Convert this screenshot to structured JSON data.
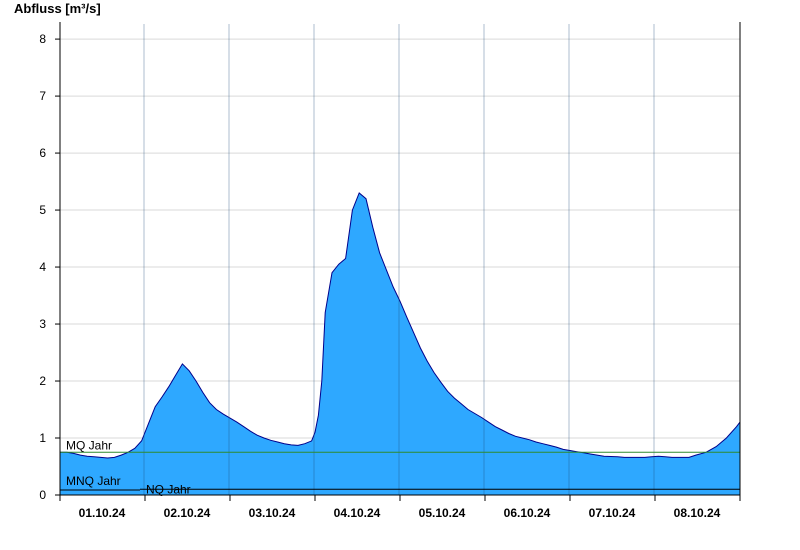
{
  "chart_data": {
    "type": "area",
    "ylabel": "Abfluss [m³/s]",
    "xlabel": "",
    "title": "",
    "ylim": [
      0,
      8.3
    ],
    "yticks": [
      "0",
      "1",
      "2",
      "3",
      "4",
      "5",
      "6",
      "7",
      "8"
    ],
    "x_categories": [
      "01.10.24",
      "02.10.24",
      "03.10.24",
      "04.10.24",
      "05.10.24",
      "06.10.24",
      "07.10.24",
      "08.10.24"
    ],
    "grid": true,
    "colors": {
      "area": "#2ea8ff",
      "outline": "#00008b",
      "mq": "#2e8b2e",
      "nq": "#000000",
      "grid": "#d9d9d9"
    },
    "series": [
      {
        "x_days": [
          0,
          0.1,
          0.2,
          0.3,
          0.4,
          0.5,
          0.6,
          0.7,
          0.8,
          0.9,
          1.0,
          1.1,
          1.2,
          1.3,
          1.4,
          1.5,
          1.6,
          1.7,
          1.8,
          1.9,
          2.0,
          2.1,
          2.2,
          2.3,
          2.4,
          2.5,
          2.6,
          2.7,
          2.8,
          2.9,
          3.0,
          3.1,
          3.2,
          3.3,
          3.4,
          3.5,
          3.6,
          3.7,
          3.75,
          3.8,
          3.85,
          3.9,
          4.0,
          4.1,
          4.2,
          4.3,
          4.4,
          4.5,
          4.6,
          4.7,
          4.8,
          4.9,
          5.0,
          5.1,
          5.2,
          5.3,
          5.4,
          5.5,
          5.6,
          5.7,
          5.8,
          5.9,
          6.0,
          6.1,
          6.2,
          6.3,
          6.4,
          6.5,
          6.6,
          6.7,
          6.8,
          6.9,
          7.0,
          7.1,
          7.2,
          7.3,
          7.4,
          7.5,
          7.6,
          7.7,
          7.8,
          7.9,
          8.0
        ],
        "values": [
          0.75,
          0.75,
          0.73,
          0.7,
          0.68,
          0.67,
          0.66,
          0.65,
          0.66,
          0.7,
          0.75,
          0.82,
          0.95,
          1.25,
          1.55,
          1.72,
          1.9,
          2.1,
          2.3,
          2.18,
          2.0,
          1.8,
          1.62,
          1.5,
          1.42,
          1.35,
          1.28,
          1.2,
          1.12,
          1.05,
          1.0,
          0.96,
          0.93,
          0.9,
          0.88,
          0.87,
          0.9,
          0.95,
          1.1,
          1.4,
          2.0,
          3.2,
          3.9,
          4.05,
          4.15,
          5.0,
          5.3,
          5.2,
          4.7,
          4.25,
          3.95,
          3.65,
          3.4,
          3.12,
          2.85,
          2.58,
          2.35,
          2.15,
          1.98,
          1.82,
          1.7,
          1.6,
          1.5,
          1.43,
          1.36,
          1.28,
          1.2,
          1.14,
          1.08,
          1.03,
          1.0,
          0.97,
          0.93,
          0.9,
          0.87,
          0.84,
          0.8,
          0.78,
          0.76,
          0.74,
          0.72,
          0.7,
          0.68
        ]
      }
    ],
    "tail_days": [
      8.0,
      8.2,
      8.3,
      8.4,
      8.5,
      8.6,
      8.7,
      8.8,
      8.9,
      9.0
    ],
    "tail_values": [
      0.68,
      0.67,
      0.66,
      0.66,
      0.66,
      0.66,
      0.67,
      0.68,
      0.67,
      0.66
    ],
    "end_days": [
      9.0,
      9.25,
      9.35,
      9.5,
      9.65,
      9.8,
      9.95,
      10.0
    ],
    "end_values": [
      0.66,
      0.66,
      0.7,
      0.75,
      0.85,
      1.0,
      1.2,
      1.28
    ],
    "reference_lines": [
      {
        "name": "MQ Jahr",
        "value": 0.75
      },
      {
        "name": "MNQ Jahr",
        "value": 0.14
      },
      {
        "name": "NQ Jahr",
        "value": 0.1
      }
    ]
  }
}
